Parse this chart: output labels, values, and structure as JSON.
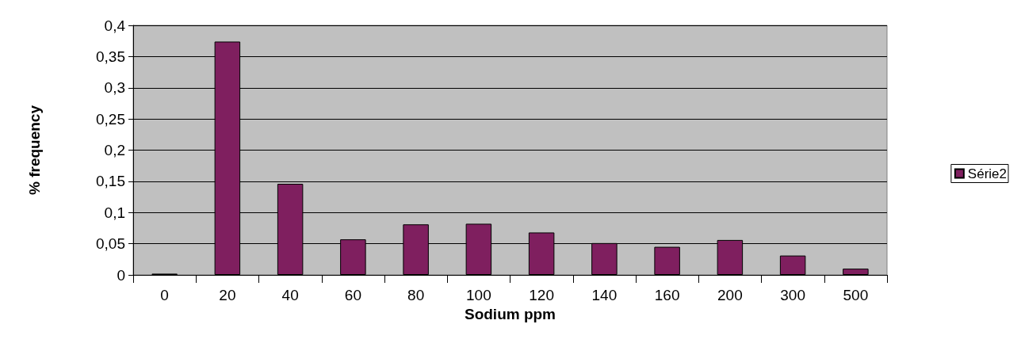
{
  "chart_data": {
    "type": "bar",
    "xlabel": "Sodium ppm",
    "ylabel": "% frequency",
    "categories": [
      "0",
      "20",
      "40",
      "60",
      "80",
      "100",
      "120",
      "140",
      "160",
      "200",
      "300",
      "500"
    ],
    "series": [
      {
        "name": "Série2",
        "color": "#7f1f5f",
        "values": [
          0.002,
          0.374,
          0.146,
          0.057,
          0.081,
          0.082,
          0.068,
          0.051,
          0.045,
          0.056,
          0.031,
          0.01
        ]
      }
    ],
    "ylim": [
      0,
      0.4
    ],
    "yticks": [
      {
        "value": 0,
        "label": "0"
      },
      {
        "value": 0.05,
        "label": "0,05"
      },
      {
        "value": 0.1,
        "label": "0,1"
      },
      {
        "value": 0.15,
        "label": "0,15"
      },
      {
        "value": 0.2,
        "label": "0,2"
      },
      {
        "value": 0.25,
        "label": "0,25"
      },
      {
        "value": 0.3,
        "label": "0,3"
      },
      {
        "value": 0.35,
        "label": "0,35"
      },
      {
        "value": 0.4,
        "label": "0,4"
      }
    ],
    "grid": "y",
    "legend": "right"
  }
}
